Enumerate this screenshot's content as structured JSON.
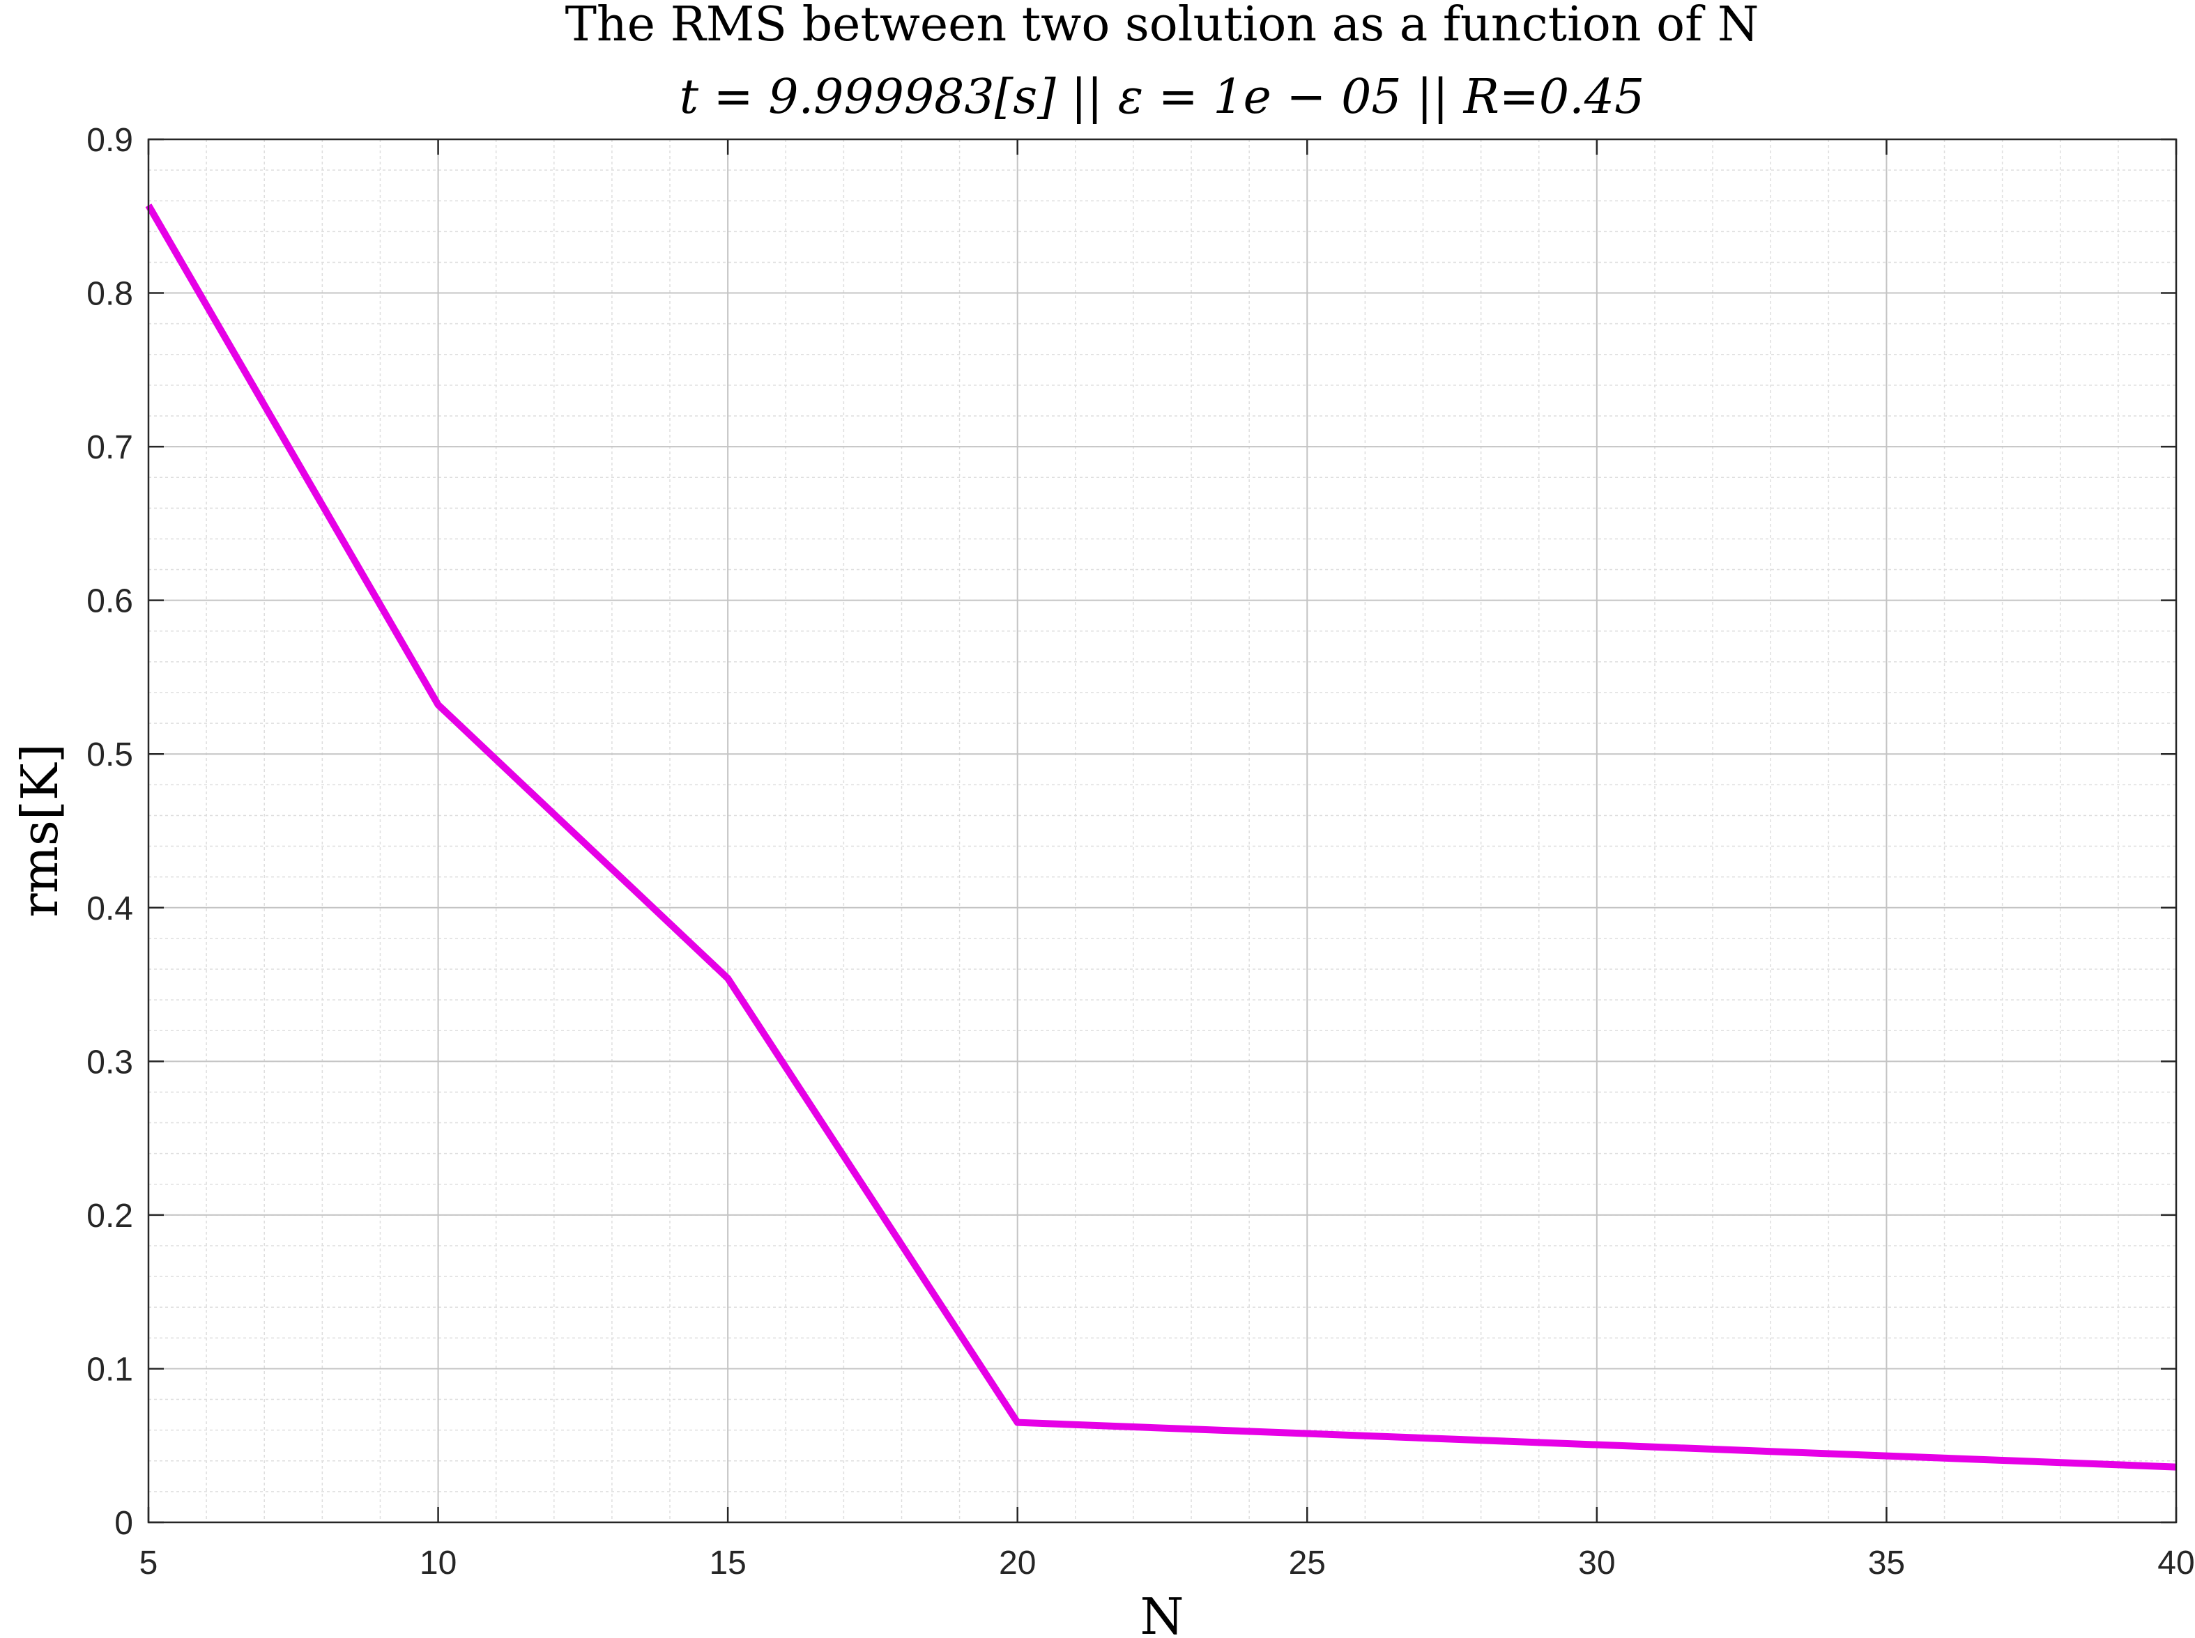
{
  "chart_data": {
    "type": "line",
    "title": "The RMS between two solution as a function of N",
    "subtitle": "t = 9.999983[s] || ε = 1e − 05 || R=0.45",
    "xlabel": "N",
    "ylabel": "rms[K]",
    "xlim": [
      5,
      40
    ],
    "ylim": [
      0,
      0.9
    ],
    "xticks": [
      5,
      10,
      15,
      20,
      25,
      30,
      35,
      40
    ],
    "xtick_labels": [
      "5",
      "10",
      "15",
      "20",
      "25",
      "30",
      "35",
      "40"
    ],
    "yticks": [
      0,
      0.1,
      0.2,
      0.3,
      0.4,
      0.5,
      0.6,
      0.7,
      0.8,
      0.9
    ],
    "ytick_labels": [
      "0",
      "0.1",
      "0.2",
      "0.3",
      "0.4",
      "0.5",
      "0.6",
      "0.7",
      "0.8",
      "0.9"
    ],
    "x_minor_step": 1,
    "y_minor_step": 0.02,
    "grid": true,
    "minor_grid": true,
    "box": true,
    "series": [
      {
        "color": "#e600e6",
        "x": [
          5,
          10,
          15,
          20,
          40
        ],
        "y": [
          0.857,
          0.532,
          0.354,
          0.065,
          0.036
        ]
      }
    ]
  }
}
